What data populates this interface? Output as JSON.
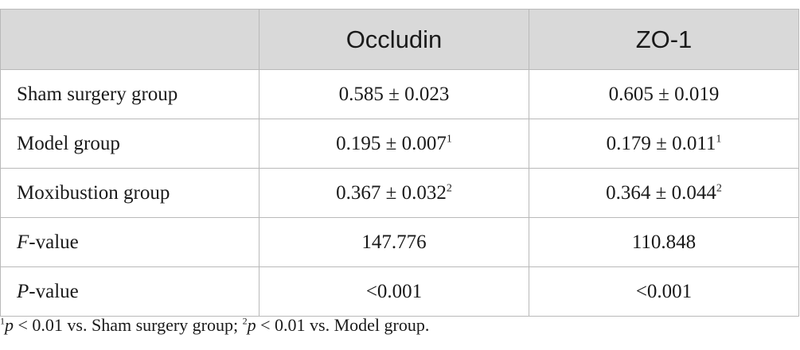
{
  "table": {
    "headers": [
      "",
      "Occludin",
      "ZO-1"
    ],
    "rows": [
      {
        "label_italic": "",
        "label_rest": "Sham surgery group",
        "occludin": "0.585 ± 0.023",
        "occludin_sup": "",
        "zo1": "0.605 ± 0.019",
        "zo1_sup": ""
      },
      {
        "label_italic": "",
        "label_rest": "Model group",
        "occludin": "0.195 ± 0.007",
        "occludin_sup": "1",
        "zo1": "0.179 ± 0.011",
        "zo1_sup": "1"
      },
      {
        "label_italic": "",
        "label_rest": "Moxibustion group",
        "occludin": "0.367 ± 0.032",
        "occludin_sup": "2",
        "zo1": "0.364 ± 0.044",
        "zo1_sup": "2"
      },
      {
        "label_italic": "F",
        "label_rest": "-value",
        "occludin": "147.776",
        "occludin_sup": "",
        "zo1": "110.848",
        "zo1_sup": ""
      },
      {
        "label_italic": "P",
        "label_rest": "-value",
        "occludin": "<0.001",
        "occludin_sup": "",
        "zo1": "<0.001",
        "zo1_sup": ""
      }
    ]
  },
  "footnote": {
    "sup1": "1",
    "p1_italic": "p",
    "text1": " < 0.01 vs. Sham surgery group; ",
    "sup2": "2",
    "p2_italic": "p",
    "text2": " < 0.01 vs. Model group."
  }
}
